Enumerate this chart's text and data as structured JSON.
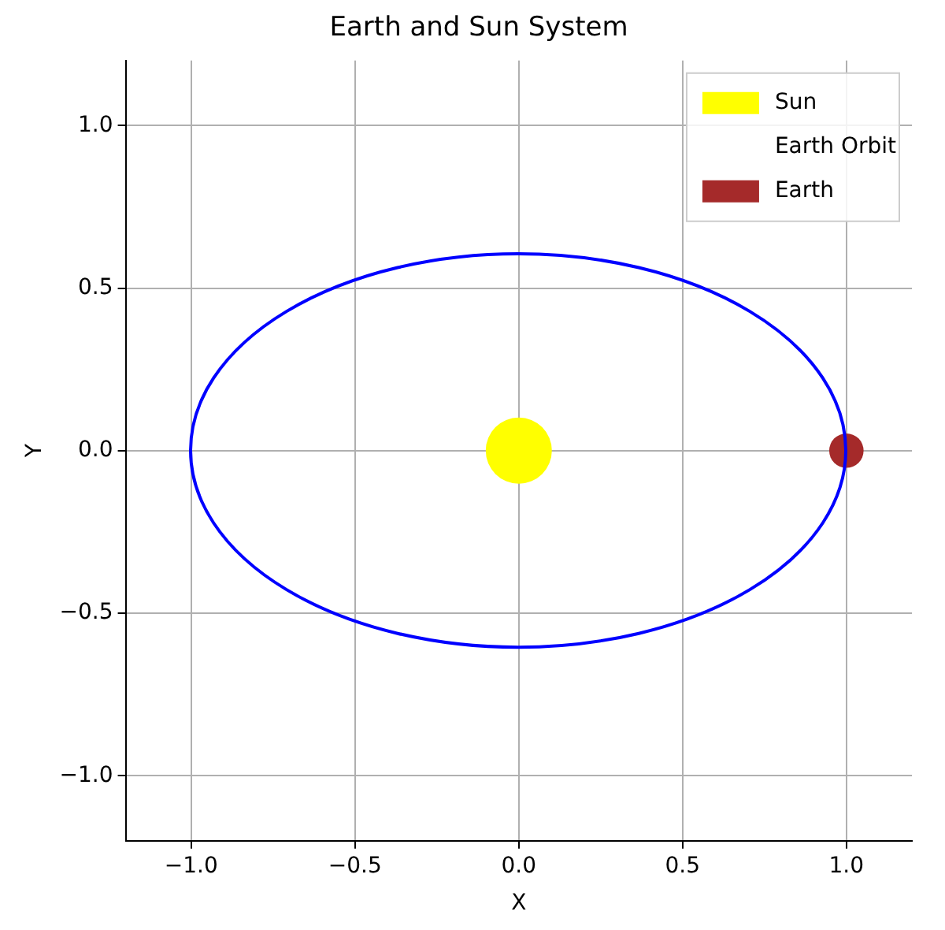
{
  "chart_data": {
    "type": "bubble",
    "title": "Earth and Sun System",
    "xlabel": "X",
    "ylabel": "Y",
    "xlim": [
      -1.2,
      1.2
    ],
    "ylim": [
      -1.2,
      1.2
    ],
    "xticks": [
      {
        "value": -1,
        "label": "−1.0"
      },
      {
        "value": -0.5,
        "label": "−0.5"
      },
      {
        "value": 0,
        "label": "0.0"
      },
      {
        "value": 0.5,
        "label": "0.5"
      },
      {
        "value": 1,
        "label": "1.0"
      }
    ],
    "yticks": [
      {
        "value": -1,
        "label": "−1.0"
      },
      {
        "value": -0.5,
        "label": "−0.5"
      },
      {
        "value": 0,
        "label": "0.0"
      },
      {
        "value": 0.5,
        "label": "0.5"
      },
      {
        "value": 1,
        "label": "1.0"
      }
    ],
    "grid": true,
    "legend": "top right",
    "series": [
      {
        "name": "Sun",
        "color": "#ffff00",
        "x": [
          0
        ],
        "values": [
          0
        ],
        "sizes": [
          1
        ]
      },
      {
        "name": "Earth Orbit",
        "type": "line"
      },
      {
        "name": "Earth",
        "color": "#a52a2a",
        "x": [
          1
        ],
        "values": [
          0
        ],
        "sizes": [
          0.27
        ]
      }
    ]
  }
}
